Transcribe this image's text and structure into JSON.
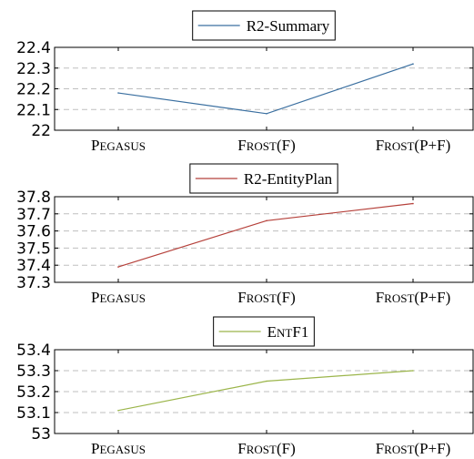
{
  "chart_data": [
    {
      "type": "line",
      "title": "",
      "xlabel": "",
      "ylabel": "",
      "categories": [
        "Pegasus",
        "Frost(F)",
        "Frost(P+F)"
      ],
      "series": [
        {
          "name": "R2-Summary",
          "values": [
            22.18,
            22.08,
            22.32
          ],
          "color": "#3a6fa0"
        }
      ],
      "ylim": [
        22,
        22.4
      ],
      "yticks": [
        22,
        22.1,
        22.2,
        22.3,
        22.4
      ],
      "ytick_labels": [
        "22",
        "22.1",
        "22.2",
        "22.3",
        "22.4"
      ],
      "grid": "horizontal-dashed",
      "legend_position": "top-center"
    },
    {
      "type": "line",
      "title": "",
      "xlabel": "",
      "ylabel": "",
      "categories": [
        "Pegasus",
        "Frost(F)",
        "Frost(P+F)"
      ],
      "series": [
        {
          "name": "R2-EntityPlan",
          "values": [
            37.39,
            37.66,
            37.76
          ],
          "color": "#b5403a"
        }
      ],
      "ylim": [
        37.3,
        37.8
      ],
      "yticks": [
        37.3,
        37.4,
        37.5,
        37.6,
        37.7,
        37.8
      ],
      "ytick_labels": [
        "37.3",
        "37.4",
        "37.5",
        "37.6",
        "37.7",
        "37.8"
      ],
      "grid": "horizontal-dashed",
      "legend_position": "top-center"
    },
    {
      "type": "line",
      "title": "",
      "xlabel": "",
      "ylabel": "",
      "categories": [
        "Pegasus",
        "Frost(F)",
        "Frost(P+F)"
      ],
      "series": [
        {
          "name": "EntF1",
          "values": [
            53.11,
            53.25,
            53.3
          ],
          "color": "#9bb54a"
        }
      ],
      "ylim": [
        53,
        53.4
      ],
      "yticks": [
        53,
        53.1,
        53.2,
        53.3,
        53.4
      ],
      "ytick_labels": [
        "53",
        "53.1",
        "53.2",
        "53.3",
        "53.4"
      ],
      "grid": "horizontal-dashed",
      "legend_position": "top-center"
    }
  ]
}
